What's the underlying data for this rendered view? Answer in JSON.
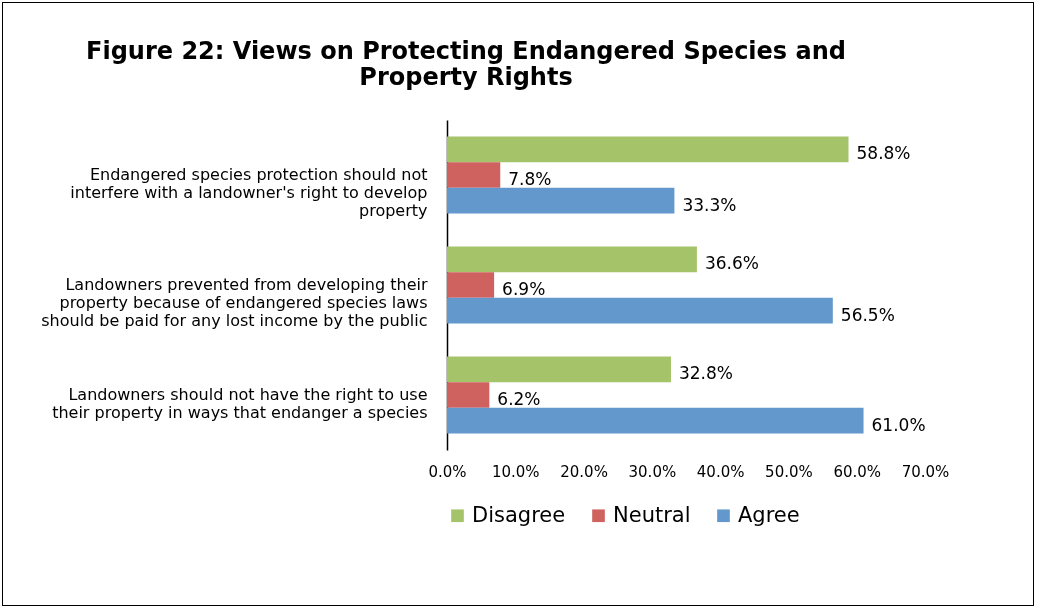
{
  "chart_data": {
    "type": "bar",
    "orientation": "horizontal",
    "title": "Figure 22: Views on Protecting Endangered Species and Property Rights",
    "categories": [
      "Endangered species protection should not interfere with a landowner's right to develop property",
      "Landowners prevented from developing their property because of endangered species laws should be paid for any lost income by the public",
      "Landowners should not have the right to use their property in ways that endanger a species"
    ],
    "series": [
      {
        "name": "Disagree",
        "color": "#a5c46a",
        "values": [
          58.8,
          36.6,
          32.8
        ],
        "value_labels": [
          "58.8%",
          "36.6%",
          "32.8%"
        ]
      },
      {
        "name": "Neutral",
        "color": "#cf625e",
        "values": [
          7.8,
          6.9,
          6.2
        ],
        "value_labels": [
          "7.8%",
          "6.9%",
          "6.2%"
        ]
      },
      {
        "name": "Agree",
        "color": "#6398cc",
        "values": [
          33.3,
          56.5,
          61.0
        ],
        "value_labels": [
          "33.3%",
          "56.5%",
          "61.0%"
        ]
      }
    ],
    "xlim": [
      0,
      70
    ],
    "xticks": [
      {
        "value": 0,
        "label": "0.0%"
      },
      {
        "value": 10,
        "label": "10.0%"
      },
      {
        "value": 20,
        "label": "20.0%"
      },
      {
        "value": 30,
        "label": "30.0%"
      },
      {
        "value": 40,
        "label": "40.0%"
      },
      {
        "value": 50,
        "label": "50.0%"
      },
      {
        "value": 60,
        "label": "60.0%"
      },
      {
        "value": 70,
        "label": "70.0%"
      }
    ],
    "grid": false,
    "legend": "bottom"
  }
}
